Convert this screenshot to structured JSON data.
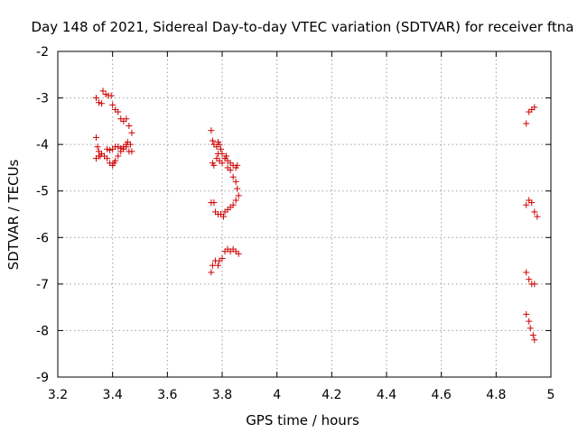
{
  "chart_data": {
    "type": "scatter",
    "title": "Day 148 of 2021, Sidereal Day-to-day VTEC variation (SDTVAR) for receiver ftna",
    "xlabel": "GPS time / hours",
    "ylabel": "SDTVAR / TECUs",
    "xlim": [
      3.2,
      5.0
    ],
    "ylim": [
      -9,
      -2
    ],
    "xticks": [
      "3.2",
      "3.4",
      "3.6",
      "3.8",
      "4",
      "4.2",
      "4.4",
      "4.6",
      "4.8",
      "5"
    ],
    "yticks": [
      "-2",
      "-3",
      "-4",
      "-5",
      "-6",
      "-7",
      "-8",
      "-9"
    ],
    "grid": true,
    "marker": "+",
    "color": "#cc0000",
    "points": [
      [
        3.34,
        -3.0
      ],
      [
        3.35,
        -3.1
      ],
      [
        3.36,
        -3.12
      ],
      [
        3.365,
        -2.85
      ],
      [
        3.375,
        -2.92
      ],
      [
        3.385,
        -2.95
      ],
      [
        3.395,
        -2.95
      ],
      [
        3.4,
        -3.15
      ],
      [
        3.41,
        -3.25
      ],
      [
        3.42,
        -3.3
      ],
      [
        3.43,
        -3.45
      ],
      [
        3.44,
        -3.5
      ],
      [
        3.45,
        -3.45
      ],
      [
        3.46,
        -3.6
      ],
      [
        3.47,
        -3.75
      ],
      [
        3.34,
        -3.85
      ],
      [
        3.345,
        -4.05
      ],
      [
        3.35,
        -4.15
      ],
      [
        3.355,
        -4.25
      ],
      [
        3.36,
        -4.2
      ],
      [
        3.37,
        -4.25
      ],
      [
        3.38,
        -4.3
      ],
      [
        3.39,
        -4.4
      ],
      [
        3.4,
        -4.45
      ],
      [
        3.405,
        -4.4
      ],
      [
        3.41,
        -4.35
      ],
      [
        3.42,
        -4.25
      ],
      [
        3.43,
        -4.15
      ],
      [
        3.44,
        -4.1
      ],
      [
        3.45,
        -4.05
      ],
      [
        3.46,
        -4.15
      ],
      [
        3.47,
        -4.15
      ],
      [
        3.34,
        -4.3
      ],
      [
        3.35,
        -4.25
      ],
      [
        3.38,
        -4.1
      ],
      [
        3.39,
        -4.12
      ],
      [
        3.4,
        -4.1
      ],
      [
        3.41,
        -4.05
      ],
      [
        3.42,
        -4.05
      ],
      [
        3.43,
        -4.08
      ],
      [
        3.44,
        -4.05
      ],
      [
        3.45,
        -4.0
      ],
      [
        3.455,
        -3.95
      ],
      [
        3.465,
        -4.0
      ],
      [
        3.76,
        -3.7
      ],
      [
        3.765,
        -3.92
      ],
      [
        3.77,
        -4.0
      ],
      [
        3.78,
        -4.05
      ],
      [
        3.785,
        -3.95
      ],
      [
        3.79,
        -4.0
      ],
      [
        3.795,
        -4.1
      ],
      [
        3.8,
        -4.2
      ],
      [
        3.81,
        -4.3
      ],
      [
        3.82,
        -4.35
      ],
      [
        3.83,
        -4.4
      ],
      [
        3.84,
        -4.45
      ],
      [
        3.85,
        -4.5
      ],
      [
        3.855,
        -4.45
      ],
      [
        3.765,
        -4.4
      ],
      [
        3.77,
        -4.45
      ],
      [
        3.78,
        -4.3
      ],
      [
        3.785,
        -4.2
      ],
      [
        3.79,
        -4.35
      ],
      [
        3.8,
        -4.4
      ],
      [
        3.81,
        -4.3
      ],
      [
        3.815,
        -4.25
      ],
      [
        3.82,
        -4.5
      ],
      [
        3.83,
        -4.55
      ],
      [
        3.84,
        -4.7
      ],
      [
        3.85,
        -4.8
      ],
      [
        3.855,
        -4.95
      ],
      [
        3.86,
        -5.1
      ],
      [
        3.76,
        -5.25
      ],
      [
        3.77,
        -5.25
      ],
      [
        3.775,
        -5.45
      ],
      [
        3.785,
        -5.5
      ],
      [
        3.795,
        -5.5
      ],
      [
        3.805,
        -5.55
      ],
      [
        3.81,
        -5.45
      ],
      [
        3.82,
        -5.4
      ],
      [
        3.83,
        -5.35
      ],
      [
        3.84,
        -5.3
      ],
      [
        3.85,
        -5.2
      ],
      [
        3.76,
        -6.75
      ],
      [
        3.765,
        -6.6
      ],
      [
        3.775,
        -6.5
      ],
      [
        3.785,
        -6.6
      ],
      [
        3.79,
        -6.5
      ],
      [
        3.8,
        -6.45
      ],
      [
        3.81,
        -6.3
      ],
      [
        3.82,
        -6.25
      ],
      [
        3.83,
        -6.3
      ],
      [
        3.84,
        -6.25
      ],
      [
        3.85,
        -6.3
      ],
      [
        3.86,
        -6.35
      ],
      [
        4.91,
        -3.55
      ],
      [
        4.92,
        -3.3
      ],
      [
        4.93,
        -3.25
      ],
      [
        4.94,
        -3.2
      ],
      [
        4.91,
        -5.3
      ],
      [
        4.92,
        -5.2
      ],
      [
        4.93,
        -5.25
      ],
      [
        4.94,
        -5.45
      ],
      [
        4.95,
        -5.55
      ],
      [
        4.91,
        -6.75
      ],
      [
        4.92,
        -6.9
      ],
      [
        4.93,
        -7.0
      ],
      [
        4.94,
        -7.0
      ],
      [
        4.91,
        -7.65
      ],
      [
        4.92,
        -7.8
      ],
      [
        4.925,
        -7.95
      ],
      [
        4.935,
        -8.1
      ],
      [
        4.94,
        -8.2
      ]
    ]
  }
}
